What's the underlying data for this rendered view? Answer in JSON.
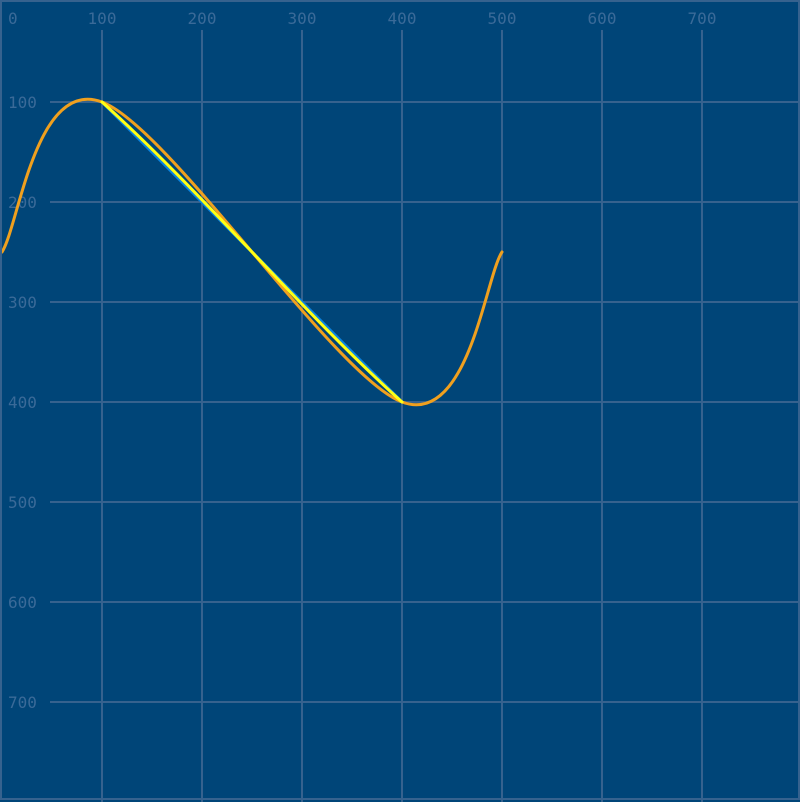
{
  "chart_data": {
    "type": "line",
    "x_ticks": [
      "0",
      "100",
      "200",
      "300",
      "400",
      "500",
      "600",
      "700"
    ],
    "y_ticks": [
      "100",
      "200",
      "300",
      "400",
      "500",
      "600",
      "700"
    ],
    "xlim": [
      0,
      800
    ],
    "ylim": [
      0,
      800
    ],
    "grid": true,
    "series": [
      {
        "name": "",
        "color": "#0a84e0",
        "kind": "polyline",
        "points": [
          [
            100,
            100
          ],
          [
            400,
            400
          ]
        ]
      },
      {
        "name": "",
        "color": "#f0a01e",
        "kind": "spline",
        "points": [
          [
            0,
            250
          ],
          [
            100,
            100
          ],
          [
            400,
            400
          ],
          [
            500,
            250
          ]
        ]
      },
      {
        "name": "",
        "color": "#ffff14",
        "kind": "bezier",
        "points": [
          [
            100,
            100
          ],
          [
            200,
            190
          ],
          [
            300,
            310
          ],
          [
            400,
            400
          ]
        ]
      }
    ]
  },
  "colors": {
    "background": "#004578",
    "grid": "#36628e",
    "tick_text": "#3a6a98"
  }
}
